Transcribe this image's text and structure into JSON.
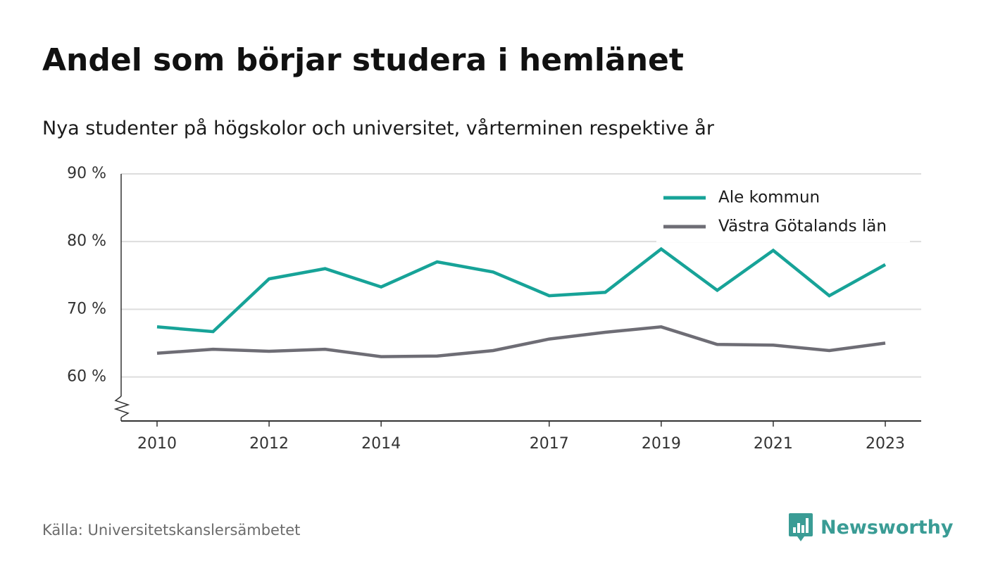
{
  "header": {
    "title": "Andel som börjar studera i hemlänet",
    "subtitle": "Nya studenter på högskolor och universitet, vårterminen respektive år"
  },
  "footer": {
    "source": "Källa: Universitetskanslersämbetet",
    "brand": "Newsworthy"
  },
  "colors": {
    "ale": "#17a398",
    "vastra": "#6e6d75",
    "grid": "#dddddd",
    "axis": "#333333",
    "brand": "#3a9c95"
  },
  "chart_data": {
    "type": "line",
    "title": "Andel som börjar studera i hemlänet",
    "subtitle": "Nya studenter på högskolor och universitet, vårterminen respektive år",
    "x": [
      2010,
      2011,
      2012,
      2013,
      2014,
      2015,
      2016,
      2017,
      2018,
      2019,
      2020,
      2021,
      2022,
      2023
    ],
    "x_ticks": [
      "2010",
      "2012",
      "2014",
      "2017",
      "2019",
      "2021",
      "2023"
    ],
    "y_ticks": [
      "60 %",
      "70 %",
      "80 %",
      "90 %"
    ],
    "y_tick_values": [
      60,
      70,
      80,
      90
    ],
    "ylim": [
      53.5,
      90
    ],
    "y_axis_break": true,
    "grid": true,
    "legend_position": "top-right",
    "series": [
      {
        "name": "Ale kommun",
        "color": "#17a398",
        "values": [
          67.4,
          66.7,
          74.5,
          76.0,
          73.3,
          77.0,
          75.5,
          72.0,
          72.5,
          78.9,
          72.8,
          78.7,
          72.0,
          76.6
        ]
      },
      {
        "name": "Västra Götalands län",
        "color": "#6e6d75",
        "values": [
          63.5,
          64.1,
          63.8,
          64.1,
          63.0,
          63.1,
          63.9,
          65.6,
          66.6,
          67.4,
          64.8,
          64.7,
          63.9,
          65.0
        ]
      }
    ]
  }
}
